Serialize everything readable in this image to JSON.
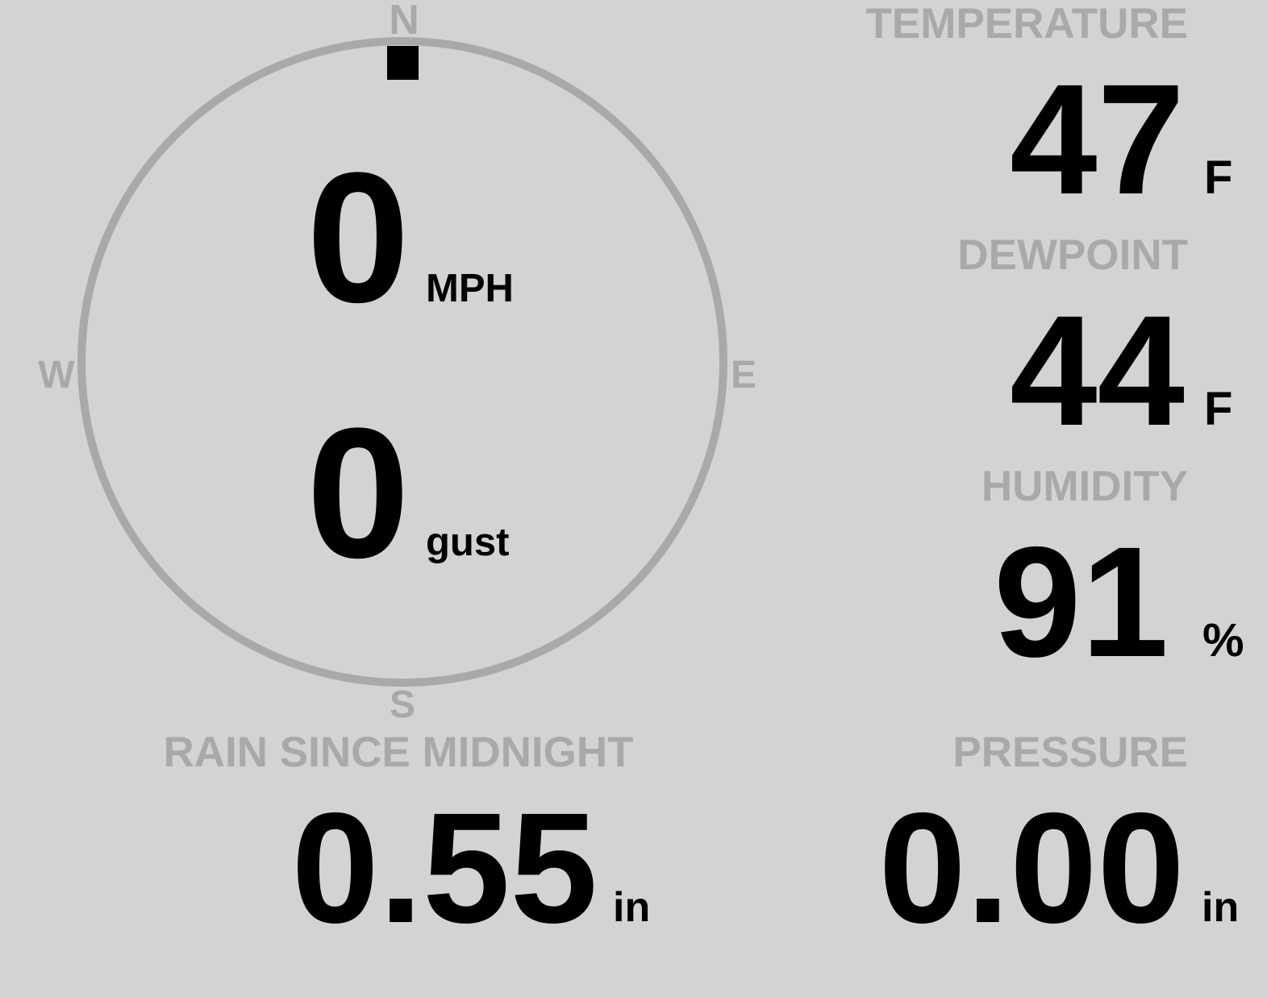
{
  "compass": {
    "north": "N",
    "south": "S",
    "east": "E",
    "west": "W",
    "wind_direction_deg": 0,
    "ring_color": "#a9a9a9",
    "marker_color": "#000000"
  },
  "wind": {
    "speed": "0",
    "speed_unit": "MPH",
    "gust": "0",
    "gust_unit": "gust"
  },
  "rain": {
    "label": "RAIN SINCE MIDNIGHT",
    "value": "0.55",
    "unit": "in"
  },
  "temperature": {
    "label": "TEMPERATURE",
    "value": "47",
    "unit": "F"
  },
  "dewpoint": {
    "label": "DEWPOINT",
    "value": "44",
    "unit": "F"
  },
  "humidity": {
    "label": "HUMIDITY",
    "value": "91",
    "unit": "%"
  },
  "pressure": {
    "label": "PRESSURE",
    "value": "0.00",
    "unit": "in"
  },
  "colors": {
    "background": "#d3d3d3",
    "label": "#a9a9a9",
    "value": "#000000"
  }
}
